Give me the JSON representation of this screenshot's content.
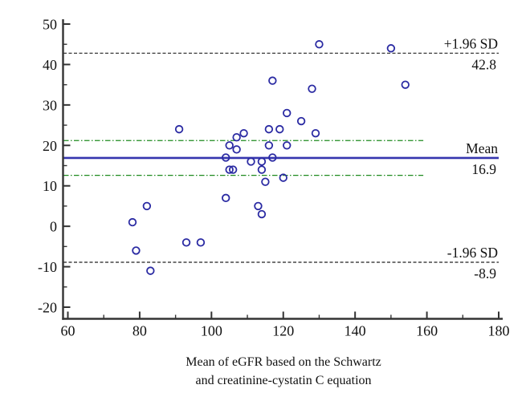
{
  "figure": {
    "background": "#ffffff",
    "axis_color": "#333333",
    "text_color": "#111111"
  },
  "chart_data": {
    "type": "scatter",
    "title": "",
    "xlabel_lines": [
      "Mean of eGFR based on the Schwartz",
      "and creatinine-cystatin C equation"
    ],
    "ylabel": "",
    "xlim": [
      60,
      180
    ],
    "ylim": [
      -20,
      50
    ],
    "x_major_ticks": [
      60,
      80,
      100,
      120,
      140,
      160,
      180
    ],
    "x_minor_ticks": [
      70,
      90,
      110,
      130,
      150,
      170
    ],
    "y_major_ticks": [
      50,
      40,
      30,
      20,
      10,
      0,
      -10,
      -20
    ],
    "y_minor_ticks": [
      45,
      35,
      25,
      15,
      5,
      -5,
      -15
    ],
    "grid": false,
    "legend": "none",
    "marker": {
      "shape": "open-circle",
      "color": "#2b2ba3",
      "radius": 4.3
    },
    "points": [
      [
        78,
        1
      ],
      [
        82,
        5
      ],
      [
        79,
        -6
      ],
      [
        83,
        -11
      ],
      [
        93,
        -4
      ],
      [
        97,
        -4
      ],
      [
        91,
        24
      ],
      [
        104,
        7
      ],
      [
        104,
        17
      ],
      [
        105,
        20
      ],
      [
        105,
        14
      ],
      [
        106,
        14
      ],
      [
        107,
        22
      ],
      [
        107,
        19
      ],
      [
        109,
        23
      ],
      [
        111,
        16
      ],
      [
        113,
        5
      ],
      [
        114,
        3
      ],
      [
        114,
        16
      ],
      [
        114,
        14
      ],
      [
        115,
        11
      ],
      [
        116,
        20
      ],
      [
        116,
        24
      ],
      [
        117,
        36
      ],
      [
        117,
        17
      ],
      [
        119,
        24
      ],
      [
        120,
        12
      ],
      [
        121,
        28
      ],
      [
        121,
        20
      ],
      [
        125,
        26
      ],
      [
        128,
        34
      ],
      [
        129,
        23
      ],
      [
        130,
        45
      ],
      [
        150,
        44
      ],
      [
        154,
        35
      ]
    ],
    "reference_lines": [
      {
        "id": "upper-loa",
        "value": 42.8,
        "style": "dashed",
        "color": "#222222",
        "label": "+1.96 SD",
        "value_label": "42.8",
        "x_end": 180
      },
      {
        "id": "mean",
        "value": 16.9,
        "style": "solid",
        "color": "#3535ae",
        "label": "Mean",
        "value_label": "16.9",
        "x_end": 180
      },
      {
        "id": "lower-loa",
        "value": -8.9,
        "style": "dashed",
        "color": "#222222",
        "label": "-1.96 SD",
        "value_label": "-8.9",
        "x_end": 180
      },
      {
        "id": "ci-upper",
        "value": 21.2,
        "style": "dash-dot",
        "color": "#1e8a1e",
        "label": "",
        "value_label": "",
        "x_end": 159
      },
      {
        "id": "ci-lower",
        "value": 12.6,
        "style": "dash-dot",
        "color": "#1e8a1e",
        "label": "",
        "value_label": "",
        "x_end": 159
      }
    ]
  }
}
